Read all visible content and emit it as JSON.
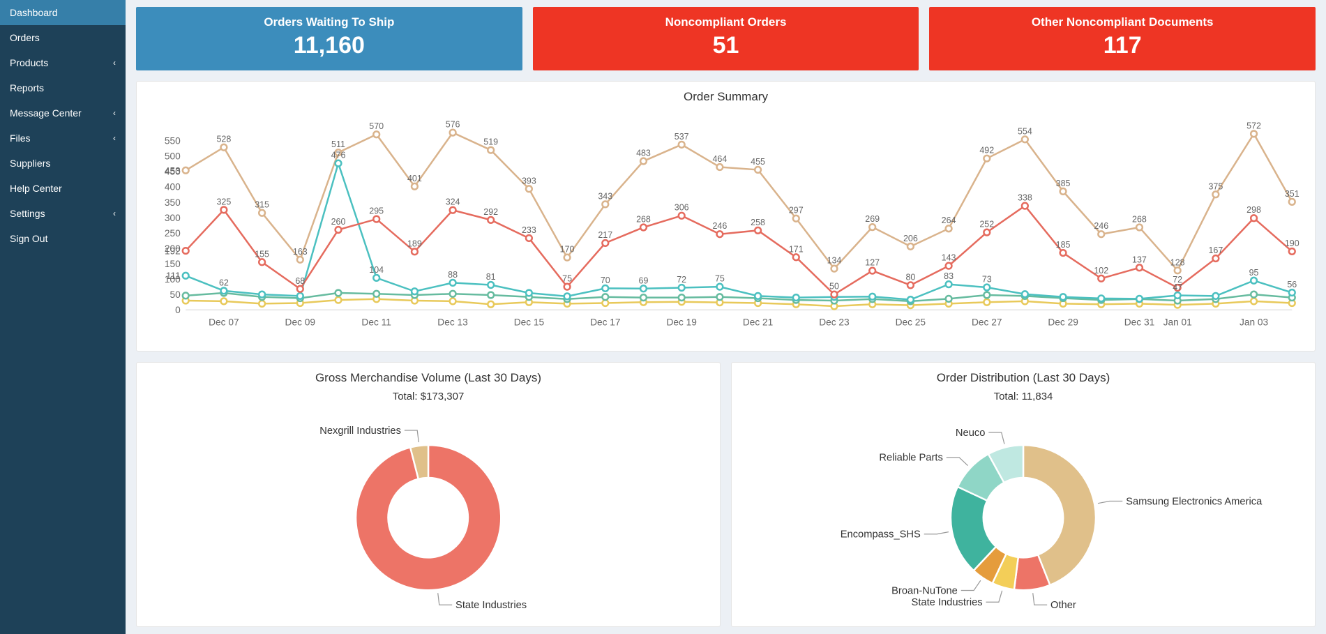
{
  "sidebar": {
    "items": [
      {
        "label": "Dashboard",
        "active": true,
        "expandable": false
      },
      {
        "label": "Orders",
        "active": false,
        "expandable": false
      },
      {
        "label": "Products",
        "active": false,
        "expandable": true
      },
      {
        "label": "Reports",
        "active": false,
        "expandable": false
      },
      {
        "label": "Message Center",
        "active": false,
        "expandable": true
      },
      {
        "label": "Files",
        "active": false,
        "expandable": true
      },
      {
        "label": "Suppliers",
        "active": false,
        "expandable": false
      },
      {
        "label": "Help Center",
        "active": false,
        "expandable": false
      },
      {
        "label": "Settings",
        "active": false,
        "expandable": true
      },
      {
        "label": "Sign Out",
        "active": false,
        "expandable": false
      }
    ]
  },
  "tiles": [
    {
      "title": "Orders Waiting To Ship",
      "value": "11,160",
      "bg": "#3c8dbc"
    },
    {
      "title": "Noncompliant Orders",
      "value": "51",
      "bg": "#ee3524"
    },
    {
      "title": "Other Noncompliant Documents",
      "value": "117",
      "bg": "#ee3524"
    }
  ],
  "order_summary": {
    "title": "Order Summary",
    "type": "line",
    "background": "#ffffff",
    "ylim": [
      0,
      600
    ],
    "ytick_step": 50,
    "yticks": [
      0,
      50,
      100,
      150,
      200,
      250,
      300,
      350,
      400,
      450,
      500,
      550
    ],
    "yaxis_extra_labels": [
      {
        "v": 453,
        "text": "453"
      },
      {
        "v": 192,
        "text": "192"
      },
      {
        "v": 111,
        "text": "111"
      }
    ],
    "xlabels": [
      "Dec 07",
      "Dec 09",
      "Dec 11",
      "Dec 13",
      "Dec 15",
      "Dec 17",
      "Dec 19",
      "Dec 21",
      "Dec 23",
      "Dec 25",
      "Dec 27",
      "Dec 29",
      "Dec 31",
      "Jan 01",
      "Jan 03"
    ],
    "xlabel_indices": [
      1,
      3,
      5,
      7,
      9,
      11,
      13,
      15,
      17,
      19,
      21,
      23,
      25,
      26,
      28
    ],
    "n_points": 30,
    "line_width": 2,
    "marker_radius": 3.5,
    "marker_fill": "#ffffff",
    "colors": {
      "tan": "#d9b38c",
      "red": "#e56b5e",
      "teal": "#4bc0c0",
      "green": "#66bb9f",
      "yellow": "#e8c95a"
    },
    "series": {
      "tan": [
        453,
        528,
        315,
        163,
        511,
        570,
        401,
        576,
        519,
        393,
        170,
        343,
        483,
        537,
        464,
        455,
        297,
        134,
        269,
        206,
        264,
        492,
        554,
        385,
        246,
        268,
        128,
        375,
        572,
        351
      ],
      "red": [
        192,
        325,
        155,
        68,
        260,
        295,
        189,
        324,
        292,
        233,
        75,
        217,
        268,
        306,
        246,
        258,
        171,
        50,
        127,
        80,
        143,
        252,
        338,
        185,
        102,
        137,
        72,
        167,
        298,
        190
      ],
      "teal": [
        111,
        62,
        50,
        45,
        476,
        104,
        60,
        88,
        81,
        55,
        44,
        70,
        69,
        72,
        75,
        45,
        40,
        42,
        43,
        33,
        83,
        73,
        51,
        42,
        37,
        36,
        47,
        45,
        95,
        56
      ],
      "green": [
        46,
        55,
        42,
        38,
        55,
        52,
        48,
        52,
        48,
        42,
        35,
        42,
        40,
        40,
        42,
        38,
        32,
        30,
        35,
        28,
        36,
        48,
        45,
        38,
        32,
        35,
        30,
        35,
        50,
        40
      ],
      "yellow": [
        30,
        28,
        20,
        22,
        32,
        35,
        30,
        28,
        18,
        25,
        20,
        22,
        25,
        26,
        24,
        22,
        18,
        12,
        18,
        15,
        20,
        25,
        28,
        20,
        18,
        20,
        16,
        20,
        28,
        22
      ]
    },
    "point_labels": {
      "tan": [
        "",
        "528",
        "315",
        "163",
        "511",
        "570",
        "401",
        "576",
        "519",
        "393",
        "170",
        "343",
        "483",
        "537",
        "464",
        "455",
        "297",
        "134",
        "269",
        "206",
        "264",
        "492",
        "554",
        "385",
        "246",
        "268",
        "128",
        "375",
        "572",
        "351"
      ],
      "red": [
        "",
        "325",
        "155",
        "68",
        "260",
        "295",
        "189",
        "324",
        "292",
        "233",
        "75",
        "217",
        "268",
        "306",
        "246",
        "258",
        "171",
        "50",
        "127",
        "80",
        "143",
        "252",
        "338",
        "185",
        "102",
        "137",
        "72",
        "167",
        "298",
        "190"
      ],
      "teal": [
        "",
        "62",
        "",
        "",
        "476",
        "104",
        "",
        "88",
        "81",
        "",
        "",
        "70",
        "69",
        "72",
        "75",
        "",
        "",
        "",
        "",
        "",
        "83",
        "73",
        "",
        "",
        "",
        "",
        "47",
        "",
        "95",
        "56"
      ]
    }
  },
  "gmv": {
    "title": "Gross Merchandise Volume (Last 30 Days)",
    "subtitle": "Total: $173,307",
    "type": "donut",
    "inner_ratio": 0.55,
    "slices": [
      {
        "label": "State Industries",
        "value": 96,
        "color": "#ed7467"
      },
      {
        "label": "Nexgrill Industries",
        "value": 4,
        "color": "#e0c08a"
      }
    ]
  },
  "order_dist": {
    "title": "Order Distribution (Last 30 Days)",
    "subtitle": "Total: 11,834",
    "type": "donut",
    "inner_ratio": 0.55,
    "slices": [
      {
        "label": "Samsung Electronics America",
        "value": 44,
        "color": "#e0c08a"
      },
      {
        "label": "Other",
        "value": 8,
        "color": "#ed7467"
      },
      {
        "label": "State Industries",
        "value": 5,
        "color": "#f3ce58"
      },
      {
        "label": "Broan-NuTone",
        "value": 5,
        "color": "#e59c3c"
      },
      {
        "label": "Encompass_SHS",
        "value": 20,
        "color": "#3fb39e"
      },
      {
        "label": "Reliable Parts",
        "value": 10,
        "color": "#8fd6c6"
      },
      {
        "label": "Neuco",
        "value": 8,
        "color": "#bfe8e1"
      }
    ]
  }
}
